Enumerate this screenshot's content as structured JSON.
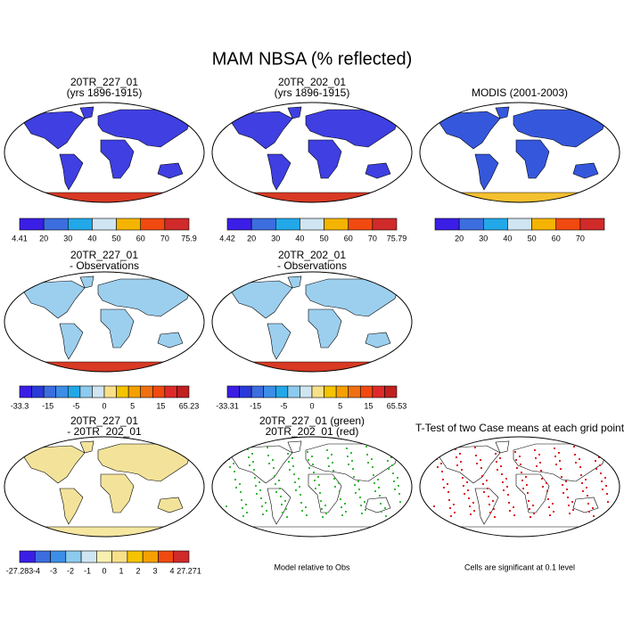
{
  "title": "MAM NBSA (% reflected)",
  "rows": [
    [
      {
        "title_lines": [
          "20TR_227_01",
          "(yrs 1896-1915)"
        ],
        "colorbar": {
          "colors": [
            "#3a1ee6",
            "#3c6ee0",
            "#22a8e8",
            "#cfe6f2",
            "#f5b400",
            "#f04a10",
            "#d02a2a"
          ],
          "labels": [
            "4.41",
            "20",
            "30",
            "40",
            "50",
            "60",
            "70",
            "75.9"
          ]
        }
      },
      {
        "title_lines": [
          "20TR_202_01",
          "(yrs 1896-1915)"
        ],
        "colorbar": {
          "colors": [
            "#3a1ee6",
            "#3c6ee0",
            "#22a8e8",
            "#cfe6f2",
            "#f5b400",
            "#f04a10",
            "#d02a2a"
          ],
          "labels": [
            "4.42",
            "20",
            "30",
            "40",
            "50",
            "60",
            "70",
            "75.79"
          ]
        }
      },
      {
        "title_lines": [
          "MODIS (2001-2003)"
        ],
        "colorbar": {
          "colors": [
            "#3a1ee6",
            "#3c6ee0",
            "#22a8e8",
            "#cfe6f2",
            "#f5b400",
            "#f04a10",
            "#d02a2a"
          ],
          "labels": [
            "20",
            "30",
            "40",
            "50",
            "60",
            "70"
          ]
        }
      }
    ],
    [
      {
        "title_lines": [
          "20TR_227_01",
          "- Observations"
        ],
        "colorbar": {
          "colors": [
            "#3a1ee6",
            "#2a3ad8",
            "#3c6ee0",
            "#3c8ee8",
            "#22a8e8",
            "#8ccbee",
            "#cfe6f2",
            "#f8e08a",
            "#f5c400",
            "#f5a000",
            "#f07010",
            "#f04a10",
            "#e02a2a",
            "#c02020"
          ],
          "labels": [
            "-33.3",
            "-15",
            "-5",
            "0",
            "5",
            "15",
            "65.23"
          ]
        }
      },
      {
        "title_lines": [
          "20TR_202_01",
          "- Observations"
        ],
        "colorbar": {
          "colors": [
            "#3a1ee6",
            "#2a3ad8",
            "#3c6ee0",
            "#3c8ee8",
            "#22a8e8",
            "#8ccbee",
            "#cfe6f2",
            "#f8e08a",
            "#f5c400",
            "#f5a000",
            "#f07010",
            "#f04a10",
            "#e02a2a",
            "#c02020"
          ],
          "labels": [
            "-33.31",
            "-15",
            "-5",
            "0",
            "5",
            "15",
            "65.53"
          ]
        }
      }
    ],
    [
      {
        "title_lines": [
          "20TR_227_01",
          "- 20TR_202_01"
        ],
        "colorbar": {
          "colors": [
            "#3a1ee6",
            "#3c6ee0",
            "#3c8ee8",
            "#8ccbee",
            "#cfe6f2",
            "#f8f0b0",
            "#f8e08a",
            "#f5c400",
            "#f5a000",
            "#f04a10",
            "#d02a2a"
          ],
          "labels": [
            "-27.283",
            "-4",
            "-3",
            "-2",
            "-1",
            "0",
            "1",
            "2",
            "3",
            "4",
            "27.271"
          ]
        }
      },
      {
        "title_lines": [
          "20TR_227_01 (green)",
          "20TR_202_01 (red)"
        ],
        "note": "Model relative to Obs"
      },
      {
        "title_lines": [
          "T-Test of two Case means at each grid point"
        ],
        "note": "Cells are significant at 0.1 level"
      }
    ]
  ]
}
